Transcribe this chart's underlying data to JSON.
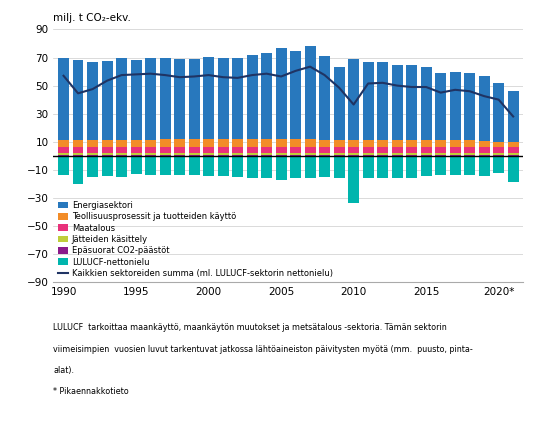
{
  "years": [
    1990,
    1991,
    1992,
    1993,
    1994,
    1995,
    1996,
    1997,
    1998,
    1999,
    2000,
    2001,
    2002,
    2003,
    2004,
    2005,
    2006,
    2007,
    2008,
    2009,
    2010,
    2011,
    2012,
    2013,
    2014,
    2015,
    2016,
    2017,
    2018,
    2019,
    2020,
    2021
  ],
  "energy": [
    58.5,
    57.0,
    55.5,
    56.5,
    58.5,
    57.0,
    58.5,
    57.5,
    57.0,
    57.0,
    58.5,
    57.5,
    57.5,
    60.0,
    61.5,
    64.5,
    62.5,
    66.0,
    59.5,
    52.0,
    57.5,
    55.0,
    55.5,
    54.0,
    53.5,
    52.0,
    48.0,
    49.0,
    48.0,
    46.5,
    42.0,
    36.5
  ],
  "industry": [
    4.5,
    4.5,
    4.5,
    4.5,
    5.0,
    5.0,
    5.0,
    5.5,
    5.5,
    5.5,
    5.5,
    5.5,
    5.5,
    5.5,
    5.5,
    5.5,
    5.5,
    5.5,
    5.0,
    4.5,
    5.0,
    5.0,
    5.0,
    4.5,
    4.5,
    4.5,
    4.5,
    4.5,
    4.5,
    4.0,
    3.5,
    3.5
  ],
  "agriculture": [
    4.5,
    4.5,
    4.5,
    4.5,
    4.5,
    4.5,
    4.5,
    4.5,
    4.5,
    4.5,
    4.5,
    4.5,
    4.5,
    4.5,
    4.5,
    4.5,
    4.5,
    4.5,
    4.5,
    4.5,
    4.5,
    4.5,
    4.5,
    4.5,
    4.5,
    4.5,
    4.5,
    4.5,
    4.5,
    4.5,
    4.5,
    4.5
  ],
  "waste": [
    1.5,
    1.5,
    1.5,
    1.5,
    1.5,
    1.5,
    1.5,
    1.5,
    1.5,
    1.5,
    1.5,
    1.5,
    1.5,
    1.5,
    1.5,
    1.5,
    1.5,
    1.5,
    1.5,
    1.5,
    1.5,
    1.5,
    1.5,
    1.5,
    1.5,
    1.5,
    1.5,
    1.5,
    1.5,
    1.5,
    1.5,
    1.5
  ],
  "indirect": [
    0.5,
    0.5,
    0.5,
    0.5,
    0.5,
    0.5,
    0.5,
    0.5,
    0.5,
    0.5,
    0.5,
    0.5,
    0.5,
    0.5,
    0.5,
    0.5,
    0.5,
    0.5,
    0.5,
    0.5,
    0.5,
    0.5,
    0.5,
    0.5,
    0.5,
    0.5,
    0.5,
    0.5,
    0.5,
    0.5,
    0.5,
    0.5
  ],
  "lulucf": [
    -13.5,
    -20.0,
    -15.0,
    -14.5,
    -15.0,
    -13.0,
    -14.0,
    -13.5,
    -14.0,
    -14.0,
    -14.5,
    -14.5,
    -15.0,
    -15.5,
    -16.0,
    -17.5,
    -15.5,
    -16.0,
    -15.0,
    -15.5,
    -33.5,
    -16.0,
    -15.5,
    -16.0,
    -16.0,
    -14.5,
    -14.0,
    -13.5,
    -13.5,
    -14.5,
    -12.0,
    -18.5
  ],
  "total_line": [
    57.0,
    44.5,
    47.5,
    53.5,
    57.5,
    58.0,
    58.5,
    57.5,
    56.0,
    56.5,
    57.5,
    56.0,
    55.5,
    57.5,
    58.5,
    56.5,
    60.5,
    63.5,
    57.5,
    48.5,
    36.5,
    51.5,
    52.0,
    50.0,
    49.0,
    49.0,
    45.0,
    47.0,
    46.0,
    42.5,
    40.0,
    28.0
  ],
  "color_energy": "#2878BD",
  "color_industry": "#F28C28",
  "color_agriculture": "#E8317A",
  "color_waste": "#BFCD3A",
  "color_indirect": "#8B1A8B",
  "color_lulucf": "#00B5AD",
  "color_line": "#1F3464",
  "ylabel": "milj. t CO₂-ekv.",
  "ylim": [
    -90,
    90
  ],
  "yticks": [
    -90,
    -70,
    -50,
    -30,
    -10,
    10,
    30,
    50,
    70,
    90
  ],
  "legend_labels": [
    "Energiasektori",
    "Teollisuusprosessit ja tuotteiden käyttö",
    "Maatalous",
    "Jätteiden käsittely",
    "Epäsuorat CO2-päästöt",
    "LULUCF-nettonielu",
    "Kaikkien sektoreiden summa (ml. LULUCF-sektorin nettonielu)"
  ],
  "footnote1": "LULUCF  tarkoittaa maankäyttö, maankäytön muutokset ja metsätalous -sektoria. Tämän sektorin",
  "footnote2": "viimeisimpien  vuosien luvut tarkentuvat jatkossa lähtöaineiston päivitysten myötä (mm.  puusto, pinta-",
  "footnote3": "alat).",
  "footnote4": "* Pikaennakkotieto"
}
